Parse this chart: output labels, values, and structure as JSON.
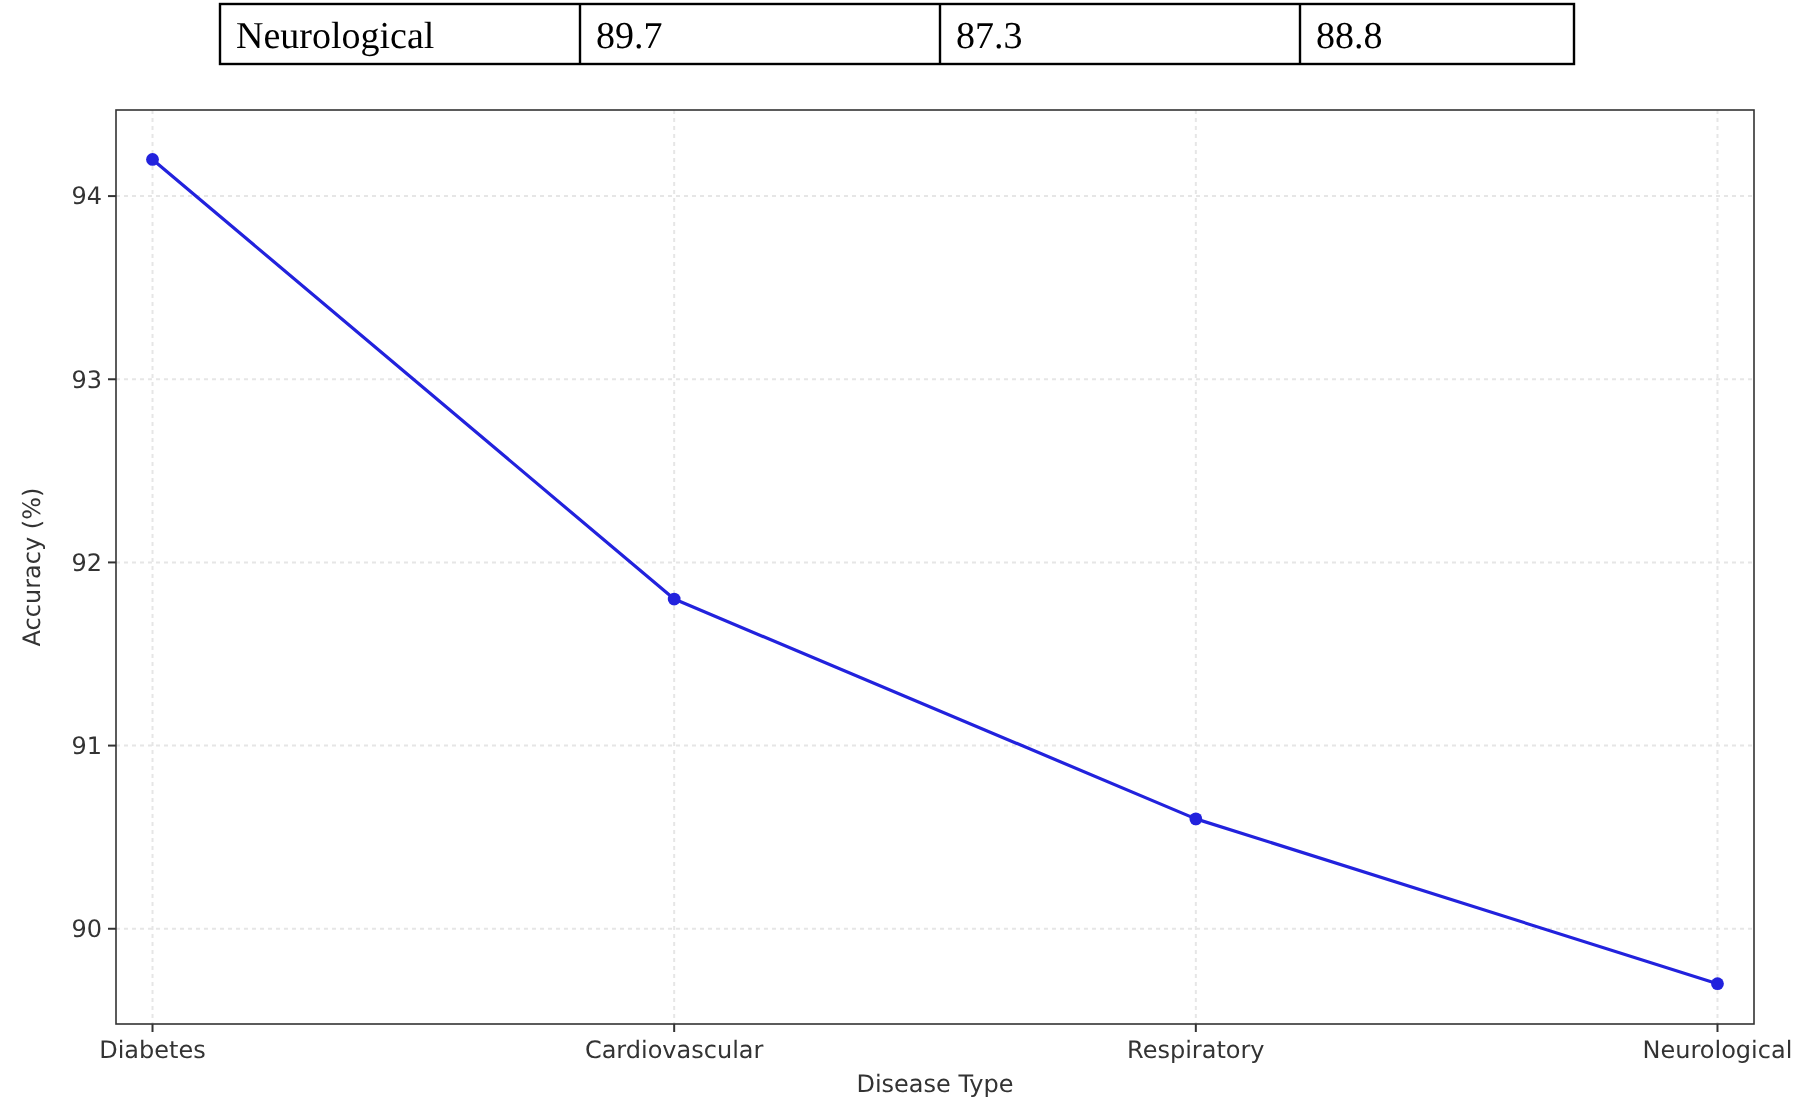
{
  "chart_data": {
    "type": "line",
    "xlabel": "Disease Type",
    "ylabel": "Accuracy (%)",
    "annotations": [
      "Neurological",
      "89.7",
      "87.3",
      "88.8"
    ],
    "categories": [
      "Diabetes",
      "Cardiovascular",
      "Respiratory",
      "Neurological"
    ],
    "series": [
      {
        "color": "#2222dd",
        "values": [
          94.2,
          91.8,
          90.6,
          89.7
        ]
      }
    ],
    "ylim": [
      89.48,
      94.47
    ],
    "yticks": [
      90,
      91,
      92,
      93,
      94
    ],
    "grid": true,
    "marker": "circle",
    "line_style": "solid"
  }
}
